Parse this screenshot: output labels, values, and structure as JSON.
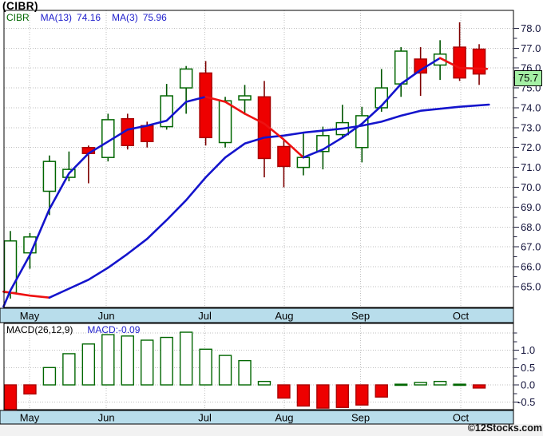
{
  "page": {
    "title": "(CIBR)"
  },
  "legend": {
    "symbol": "CIBR",
    "ma13_label": "MA(13)",
    "ma13_value": "74.16",
    "ma3_label": "MA(3)",
    "ma3_value": "75.96"
  },
  "macd_legend": {
    "label": "MACD(26,12,9)",
    "value": "MACD:-0.09"
  },
  "last_price": {
    "value": "75.7"
  },
  "footer": {
    "text": "©12Stocks.com"
  },
  "colors": {
    "up": "#006600",
    "up_fill": "#ffffff",
    "up_wick": "#005500",
    "down": "#ee0000",
    "down_border": "#aa0000",
    "down_wick": "#7d0000",
    "ma_up": "#1414cc",
    "ma_down": "#ee1111",
    "grid": "#bfbfbf",
    "panel_border": "#000000",
    "axis_text": "#14143c",
    "month_text": "#000000",
    "strip_bg": "#b8ddeb",
    "badge_bg": "#a4f0a4",
    "legend_symbol": "#006600",
    "legend_ma": "#2020cc",
    "footer_band": "#f2f2f2"
  },
  "chart_data": {
    "type": "candlestick",
    "symbol": "CIBR",
    "interval": "weekly",
    "price_axis": {
      "ticks": [
        78,
        77,
        76,
        75,
        74,
        73,
        72,
        71,
        70,
        69,
        68,
        67,
        66,
        65
      ],
      "minor_step": 0.5,
      "ylim": [
        64.0,
        78.9
      ],
      "label_format": "0.0"
    },
    "months": [
      {
        "label": "May",
        "i": 0.98
      },
      {
        "label": "Jun",
        "i": 4.91
      },
      {
        "label": "Jul",
        "i": 9.96
      },
      {
        "label": "Aug",
        "i": 14.02
      },
      {
        "label": "Sep",
        "i": 17.93
      },
      {
        "label": "Oct",
        "i": 23.06
      }
    ],
    "candles": [
      {
        "o": 64.7,
        "h": 67.8,
        "l": 64.4,
        "c": 67.3
      },
      {
        "o": 66.7,
        "h": 67.7,
        "l": 65.9,
        "c": 67.5
      },
      {
        "o": 69.8,
        "h": 71.6,
        "l": 68.6,
        "c": 71.3
      },
      {
        "o": 70.5,
        "h": 71.8,
        "l": 70.3,
        "c": 70.9
      },
      {
        "o": 72.0,
        "h": 72.1,
        "l": 70.2,
        "c": 71.7
      },
      {
        "o": 71.5,
        "h": 73.7,
        "l": 71.3,
        "c": 73.4
      },
      {
        "o": 73.45,
        "h": 73.7,
        "l": 71.9,
        "c": 72.1
      },
      {
        "o": 73.1,
        "h": 73.3,
        "l": 72.0,
        "c": 72.3
      },
      {
        "o": 73.05,
        "h": 75.2,
        "l": 72.9,
        "c": 74.6
      },
      {
        "o": 75.0,
        "h": 76.1,
        "l": 73.7,
        "c": 75.95
      },
      {
        "o": 75.75,
        "h": 76.35,
        "l": 72.1,
        "c": 72.5
      },
      {
        "o": 72.25,
        "h": 74.55,
        "l": 72.0,
        "c": 74.35
      },
      {
        "o": 74.4,
        "h": 75.15,
        "l": 73.65,
        "c": 74.6
      },
      {
        "o": 74.55,
        "h": 75.35,
        "l": 70.5,
        "c": 71.45
      },
      {
        "o": 72.05,
        "h": 72.4,
        "l": 70.0,
        "c": 71.05
      },
      {
        "o": 71.0,
        "h": 72.7,
        "l": 70.6,
        "c": 71.5
      },
      {
        "o": 71.8,
        "h": 73.05,
        "l": 70.9,
        "c": 72.6
      },
      {
        "o": 72.65,
        "h": 74.15,
        "l": 72.45,
        "c": 73.25
      },
      {
        "o": 72.0,
        "h": 74.05,
        "l": 71.25,
        "c": 73.6
      },
      {
        "o": 74.0,
        "h": 75.95,
        "l": 73.8,
        "c": 75.0
      },
      {
        "o": 75.2,
        "h": 77.05,
        "l": 74.55,
        "c": 76.85
      },
      {
        "o": 76.45,
        "h": 77.05,
        "l": 74.6,
        "c": 75.75
      },
      {
        "o": 76.15,
        "h": 77.4,
        "l": 75.4,
        "c": 76.7
      },
      {
        "o": 77.05,
        "h": 78.3,
        "l": 75.35,
        "c": 75.5
      },
      {
        "o": 76.95,
        "h": 77.2,
        "l": 75.15,
        "c": 75.7
      }
    ],
    "ma3": {
      "name": "MA(3)",
      "last": 75.96,
      "segments": [
        {
          "trend": "up",
          "points": [
            [
              -0.35,
              64.0
            ],
            [
              0,
              64.8
            ],
            [
              1,
              66.6
            ],
            [
              2,
              68.9
            ],
            [
              3,
              70.7
            ],
            [
              4,
              71.7
            ],
            [
              5,
              72.3
            ],
            [
              6,
              72.9
            ],
            [
              7,
              73.1
            ],
            [
              8,
              73.35
            ],
            [
              9,
              74.3
            ],
            [
              10,
              74.55
            ]
          ]
        },
        {
          "trend": "down",
          "points": [
            [
              10,
              74.55
            ],
            [
              11,
              74.3
            ],
            [
              12,
              73.7
            ],
            [
              13,
              73.2
            ],
            [
              14,
              72.4
            ],
            [
              15,
              71.5
            ]
          ]
        },
        {
          "trend": "up",
          "points": [
            [
              15,
              71.5
            ],
            [
              16,
              71.9
            ],
            [
              17,
              72.5
            ],
            [
              18,
              73.2
            ],
            [
              19,
              74.1
            ],
            [
              20,
              75.2
            ],
            [
              21,
              75.9
            ],
            [
              22,
              76.5
            ]
          ]
        },
        {
          "trend": "down",
          "points": [
            [
              22,
              76.5
            ],
            [
              23,
              76.0
            ],
            [
              24.4,
              75.96
            ]
          ]
        }
      ]
    },
    "ma13": {
      "name": "MA(13)",
      "last": 74.16,
      "segments": [
        {
          "trend": "down",
          "points": [
            [
              -0.35,
              64.75
            ],
            [
              1,
              64.55
            ],
            [
              2,
              64.45
            ]
          ]
        },
        {
          "trend": "up",
          "points": [
            [
              2,
              64.45
            ],
            [
              3,
              64.9
            ],
            [
              4,
              65.35
            ],
            [
              5,
              65.95
            ],
            [
              6,
              66.65
            ],
            [
              7,
              67.4
            ],
            [
              8,
              68.35
            ],
            [
              9,
              69.35
            ],
            [
              10,
              70.5
            ],
            [
              11,
              71.5
            ],
            [
              12,
              72.2
            ],
            [
              13,
              72.5
            ],
            [
              14,
              72.6
            ],
            [
              15,
              72.75
            ],
            [
              16,
              72.85
            ],
            [
              17,
              72.95
            ],
            [
              18,
              73.1
            ],
            [
              19,
              73.3
            ],
            [
              20,
              73.6
            ],
            [
              21,
              73.85
            ],
            [
              22,
              73.95
            ],
            [
              23,
              74.05
            ],
            [
              24.5,
              74.16
            ]
          ]
        }
      ]
    },
    "macd": {
      "params": "26,12,9",
      "last": -0.09,
      "values": [
        -0.72,
        -0.26,
        0.5,
        0.9,
        1.18,
        1.45,
        1.41,
        1.29,
        1.37,
        1.52,
        1.03,
        0.85,
        0.7,
        0.1,
        -0.38,
        -0.61,
        -0.67,
        -0.65,
        -0.58,
        -0.35,
        0.02,
        0.07,
        0.1,
        0.02,
        -0.09
      ],
      "axis": {
        "ticks": [
          1.0,
          0.5,
          0.0,
          -0.5
        ],
        "grid": [
          1.5,
          1.0,
          0.5,
          0.0,
          -0.5
        ],
        "minor_step": 0.25,
        "ylim": [
          -0.71,
          1.77
        ]
      }
    }
  }
}
